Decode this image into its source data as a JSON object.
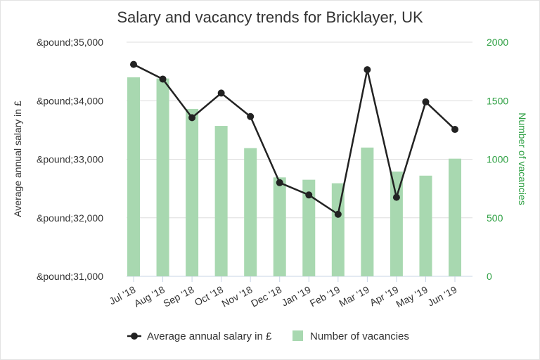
{
  "chart_data": {
    "type": "bar+line",
    "title": "Salary and vacancy trends for Bricklayer, UK",
    "categories": [
      "Jul '18",
      "Aug '18",
      "Sep '18",
      "Oct '18",
      "Nov '18",
      "Dec '18",
      "Jan '19",
      "Feb '19",
      "Mar '19",
      "Apr '19",
      "May '19",
      "Jun '19"
    ],
    "series": [
      {
        "name": "Average annual salary in £",
        "type": "line",
        "axis": "left",
        "color": "#222222",
        "values": [
          34620,
          34370,
          33710,
          34130,
          33730,
          32600,
          32390,
          32060,
          34530,
          32350,
          33980,
          33510
        ]
      },
      {
        "name": "Number of vacancies",
        "type": "bar",
        "axis": "right",
        "color": "#a8d8b0",
        "values": [
          1700,
          1690,
          1430,
          1285,
          1095,
          845,
          825,
          795,
          1100,
          895,
          860,
          1005
        ]
      }
    ],
    "y_left": {
      "label": "Average annual salary in £",
      "ticks": [
        "&pound;35,000",
        "&pound;34,000",
        "&pound;33,000",
        "&pound;32,000",
        "&pound;31,000"
      ],
      "range": [
        31000,
        35000
      ]
    },
    "y_right": {
      "label": "Number of vacancies",
      "ticks": [
        "2000",
        "1500",
        "1000",
        "500",
        "0"
      ],
      "range": [
        0,
        2000
      ],
      "color": "#2ea043"
    },
    "legend": {
      "position": "bottom",
      "items": [
        "Average annual salary in £",
        "Number of vacancies"
      ]
    },
    "grid": true
  }
}
